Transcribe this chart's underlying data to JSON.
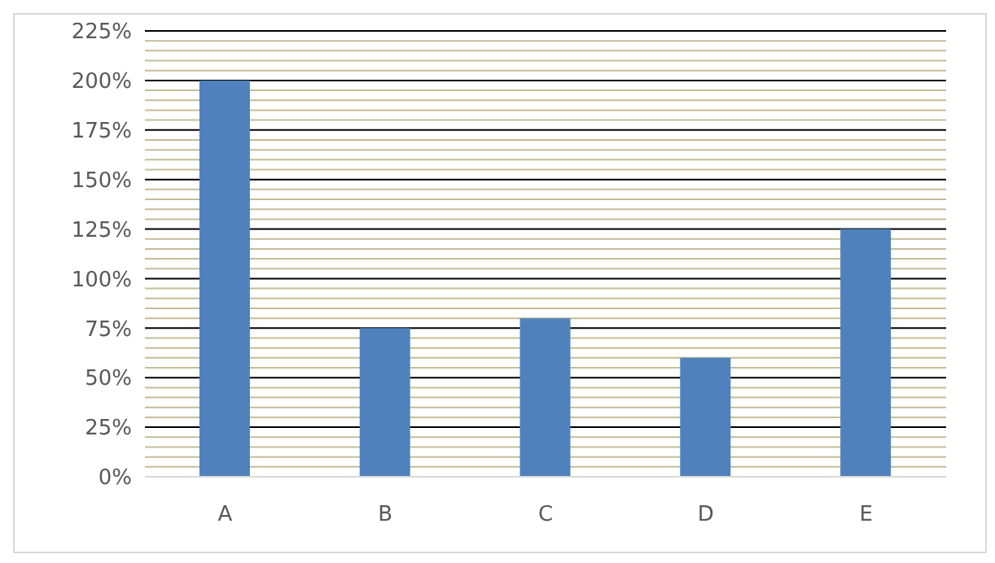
{
  "chart_data": {
    "type": "bar",
    "categories": [
      "A",
      "B",
      "C",
      "D",
      "E"
    ],
    "values": [
      200,
      75,
      80,
      60,
      125
    ],
    "color": "#4f81bd",
    "ylim": [
      0,
      225
    ],
    "yticks": [
      {
        "value": 0,
        "label": "0%"
      },
      {
        "value": 5,
        "label": null
      },
      {
        "value": 10,
        "label": null
      },
      {
        "value": 15,
        "label": null
      },
      {
        "value": 20,
        "label": null
      },
      {
        "value": 25,
        "label": "25%"
      },
      {
        "value": 30,
        "label": null
      },
      {
        "value": 35,
        "label": null
      },
      {
        "value": 40,
        "label": null
      },
      {
        "value": 45,
        "label": null
      },
      {
        "value": 50,
        "label": "50%"
      },
      {
        "value": 55,
        "label": null
      },
      {
        "value": 60,
        "label": null
      },
      {
        "value": 65,
        "label": null
      },
      {
        "value": 70,
        "label": null
      },
      {
        "value": 75,
        "label": "75%"
      },
      {
        "value": 80,
        "label": null
      },
      {
        "value": 85,
        "label": null
      },
      {
        "value": 90,
        "label": null
      },
      {
        "value": 95,
        "label": null
      },
      {
        "value": 100,
        "label": "100%"
      },
      {
        "value": 105,
        "label": null
      },
      {
        "value": 110,
        "label": null
      },
      {
        "value": 115,
        "label": null
      },
      {
        "value": 120,
        "label": null
      },
      {
        "value": 125,
        "label": "125%"
      },
      {
        "value": 130,
        "label": null
      },
      {
        "value": 135,
        "label": null
      },
      {
        "value": 140,
        "label": null
      },
      {
        "value": 145,
        "label": null
      },
      {
        "value": 150,
        "label": "150%"
      },
      {
        "value": 155,
        "label": null
      },
      {
        "value": 160,
        "label": null
      },
      {
        "value": 165,
        "label": null
      },
      {
        "value": 170,
        "label": null
      },
      {
        "value": 175,
        "label": "175%"
      },
      {
        "value": 180,
        "label": null
      },
      {
        "value": 185,
        "label": null
      },
      {
        "value": 190,
        "label": null
      },
      {
        "value": 195,
        "label": null
      },
      {
        "value": 200,
        "label": "200%"
      },
      {
        "value": 205,
        "label": null
      },
      {
        "value": 210,
        "label": null
      },
      {
        "value": 215,
        "label": null
      },
      {
        "value": 220,
        "label": null
      },
      {
        "value": 225,
        "label": "225%"
      }
    ],
    "grid": true
  }
}
